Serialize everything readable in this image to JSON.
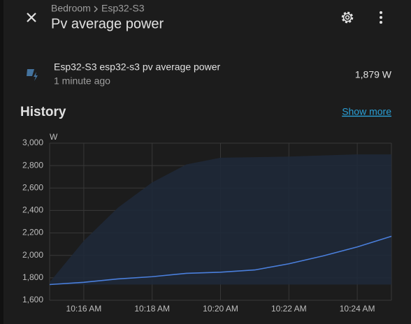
{
  "header": {
    "breadcrumb": [
      "Bedroom",
      "Esp32-S3"
    ],
    "title": "Pv average power"
  },
  "entity": {
    "name": "Esp32-S3 esp32-s3 pv average power",
    "time": "1 minute ago",
    "state": "1,879 W"
  },
  "history": {
    "title": "History",
    "link": "Show more"
  },
  "chart_data": {
    "type": "line",
    "ylabel": "W",
    "grid": true,
    "x": [
      "10:15",
      "10:16",
      "10:17",
      "10:18",
      "10:19",
      "10:20",
      "10:21",
      "10:22",
      "10:23",
      "10:24",
      "10:25"
    ],
    "series": [
      {
        "color": "#4a7fdc",
        "values": [
          1740,
          1760,
          1790,
          1810,
          1840,
          1850,
          1870,
          1925,
          1995,
          2075,
          2170
        ]
      },
      {
        "color": "#1f2939",
        "values": [
          1740,
          1740,
          1740,
          1740,
          1740,
          1740,
          1740,
          1740,
          1740,
          1740,
          1740
        ]
      },
      {
        "color": "#1f2939",
        "values": [
          1760,
          2130,
          2425,
          2650,
          2810,
          2870,
          2875,
          2880,
          2890,
          2900,
          2900
        ]
      }
    ],
    "xlim": [
      "10:15",
      "10:25"
    ],
    "xticks": [
      {
        "value": "10:16",
        "label": "10:16 AM"
      },
      {
        "value": "10:18",
        "label": "10:18 AM"
      },
      {
        "value": "10:20",
        "label": "10:20 AM"
      },
      {
        "value": "10:22",
        "label": "10:22 AM"
      },
      {
        "value": "10:24",
        "label": "10:24 AM"
      }
    ],
    "ylim": [
      1600,
      3000
    ],
    "yticks": [
      {
        "value": 1600,
        "label": "1,600"
      },
      {
        "value": 1800,
        "label": "1,800"
      },
      {
        "value": 2000,
        "label": "2,000"
      },
      {
        "value": 2200,
        "label": "2,200"
      },
      {
        "value": 2400,
        "label": "2,400"
      },
      {
        "value": 2600,
        "label": "2,600"
      },
      {
        "value": 2800,
        "label": "2,800"
      },
      {
        "value": 3000,
        "label": "3,000"
      }
    ]
  }
}
